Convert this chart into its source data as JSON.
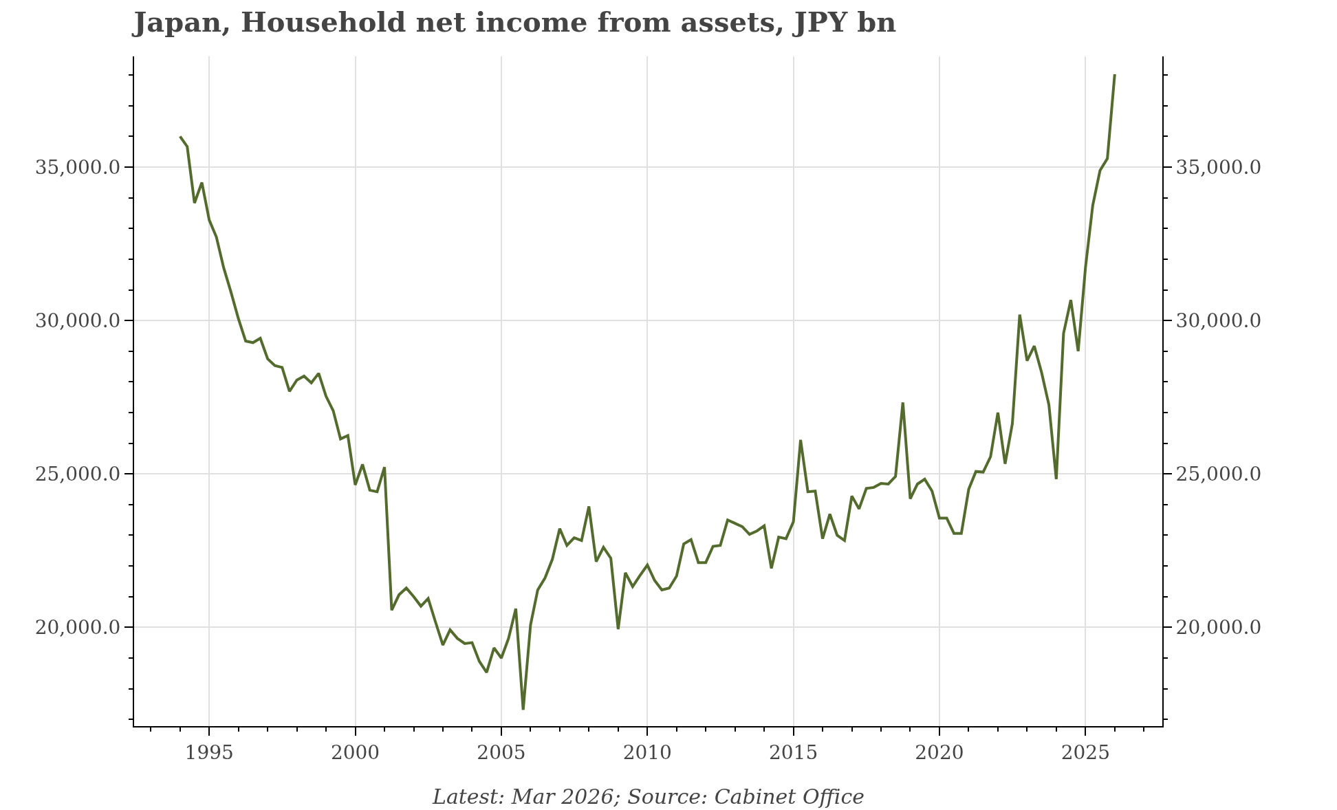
{
  "chart_data": {
    "type": "line",
    "title": "Japan, Household net income from assets, JPY bn",
    "annotations": [
      "Latest: Mar 2026; Source: Cabinet Office"
    ],
    "x": [
      "1994-01",
      "1994-04",
      "1994-07",
      "1994-10",
      "1995-01",
      "1995-04",
      "1995-07",
      "1995-10",
      "1996-01",
      "1996-04",
      "1996-07",
      "1996-10",
      "1997-01",
      "1997-04",
      "1997-07",
      "1997-10",
      "1998-01",
      "1998-04",
      "1998-07",
      "1998-10",
      "1999-01",
      "1999-04",
      "1999-07",
      "1999-10",
      "2000-01",
      "2000-04",
      "2000-07",
      "2000-10",
      "2001-01",
      "2001-04",
      "2001-07",
      "2001-10",
      "2002-01",
      "2002-04",
      "2002-07",
      "2002-10",
      "2003-01",
      "2003-04",
      "2003-07",
      "2003-10",
      "2004-01",
      "2004-04",
      "2004-07",
      "2004-10",
      "2005-01",
      "2005-04",
      "2005-07",
      "2005-10",
      "2006-01",
      "2006-04",
      "2006-07",
      "2006-10",
      "2007-01",
      "2007-04",
      "2007-07",
      "2007-10",
      "2008-01",
      "2008-04",
      "2008-07",
      "2008-10",
      "2009-01",
      "2009-04",
      "2009-07",
      "2009-10",
      "2010-01",
      "2010-04",
      "2010-07",
      "2010-10",
      "2011-01",
      "2011-04",
      "2011-07",
      "2011-10",
      "2012-01",
      "2012-04",
      "2012-07",
      "2012-10",
      "2013-01",
      "2013-04",
      "2013-07",
      "2013-10",
      "2014-01",
      "2014-04",
      "2014-07",
      "2014-10",
      "2015-01",
      "2015-04",
      "2015-07",
      "2015-10",
      "2016-01",
      "2016-04",
      "2016-07",
      "2016-10",
      "2017-01",
      "2017-04",
      "2017-07",
      "2017-10",
      "2018-01",
      "2018-04",
      "2018-07",
      "2018-10",
      "2019-01",
      "2019-04",
      "2019-07",
      "2019-10",
      "2020-01",
      "2020-04",
      "2020-07",
      "2020-10",
      "2021-01",
      "2021-04",
      "2021-07",
      "2021-10",
      "2022-01",
      "2022-04",
      "2022-07",
      "2022-10",
      "2023-01",
      "2023-04",
      "2023-07",
      "2023-10",
      "2024-01",
      "2024-04",
      "2024-07",
      "2024-10",
      "2025-01",
      "2025-04",
      "2025-07",
      "2025-10",
      "2026-01"
    ],
    "series": [
      {
        "color": "#546b2e",
        "values": [
          36000,
          35670,
          33830,
          34500,
          33280,
          32720,
          31720,
          30920,
          30060,
          29330,
          29280,
          29420,
          28750,
          28530,
          28470,
          27690,
          28060,
          28190,
          27970,
          28280,
          27530,
          27060,
          26140,
          26250,
          24640,
          25310,
          24470,
          24420,
          25220,
          20560,
          21060,
          21280,
          21000,
          20690,
          20940,
          20170,
          19420,
          19920,
          19640,
          19470,
          19500,
          18890,
          18530,
          19330,
          19000,
          19640,
          20610,
          17310,
          20080,
          21220,
          21610,
          22220,
          23220,
          22670,
          22920,
          22830,
          23940,
          22140,
          22610,
          22250,
          19940,
          21780,
          21330,
          21690,
          22030,
          21530,
          21220,
          21280,
          21670,
          22720,
          22860,
          22110,
          22110,
          22640,
          22670,
          23500,
          23390,
          23280,
          23030,
          23140,
          23310,
          21920,
          22940,
          22890,
          23440,
          26110,
          24420,
          24440,
          22890,
          23690,
          23000,
          22830,
          24280,
          23860,
          24530,
          24560,
          24690,
          24670,
          24920,
          27330,
          24190,
          24670,
          24830,
          24440,
          23560,
          23560,
          23060,
          23060,
          24500,
          25080,
          25060,
          25560,
          27000,
          25330,
          26640,
          30190,
          28690,
          29170,
          28310,
          27250,
          24830,
          29580,
          30670,
          29000,
          31750,
          33750,
          34890,
          35280,
          38030
        ]
      }
    ],
    "xlim": [
      "1992-06-06",
      "2027-08-19"
    ],
    "xticks": [
      {
        "value": "1993",
        "label": null
      },
      {
        "value": "1994",
        "label": null
      },
      {
        "value": "1995",
        "label": "1995"
      },
      {
        "value": "1996",
        "label": null
      },
      {
        "value": "1997",
        "label": null
      },
      {
        "value": "1998",
        "label": null
      },
      {
        "value": "1999",
        "label": null
      },
      {
        "value": "2000",
        "label": "2000"
      },
      {
        "value": "2001",
        "label": null
      },
      {
        "value": "2002",
        "label": null
      },
      {
        "value": "2003",
        "label": null
      },
      {
        "value": "2004",
        "label": null
      },
      {
        "value": "2005",
        "label": "2005"
      },
      {
        "value": "2006",
        "label": null
      },
      {
        "value": "2007",
        "label": null
      },
      {
        "value": "2008",
        "label": null
      },
      {
        "value": "2009",
        "label": null
      },
      {
        "value": "2010",
        "label": "2010"
      },
      {
        "value": "2011",
        "label": null
      },
      {
        "value": "2012",
        "label": null
      },
      {
        "value": "2013",
        "label": null
      },
      {
        "value": "2014",
        "label": null
      },
      {
        "value": "2015",
        "label": "2015"
      },
      {
        "value": "2016",
        "label": null
      },
      {
        "value": "2017",
        "label": null
      },
      {
        "value": "2018",
        "label": null
      },
      {
        "value": "2019",
        "label": null
      },
      {
        "value": "2020",
        "label": "2020"
      },
      {
        "value": "2021",
        "label": null
      },
      {
        "value": "2022",
        "label": null
      },
      {
        "value": "2023",
        "label": null
      },
      {
        "value": "2024",
        "label": null
      },
      {
        "value": "2025",
        "label": "2025"
      },
      {
        "value": "2026",
        "label": null
      },
      {
        "value": "2027",
        "label": null
      }
    ],
    "ylim": [
      16780,
      38610
    ],
    "yticks": [
      {
        "value": 17000,
        "label": null
      },
      {
        "value": 18000,
        "label": null
      },
      {
        "value": 19000,
        "label": null
      },
      {
        "value": 20000,
        "label": "20,000.0"
      },
      {
        "value": 21000,
        "label": null
      },
      {
        "value": 22000,
        "label": null
      },
      {
        "value": 23000,
        "label": null
      },
      {
        "value": 24000,
        "label": null
      },
      {
        "value": 25000,
        "label": "25,000.0"
      },
      {
        "value": 26000,
        "label": null
      },
      {
        "value": 27000,
        "label": null
      },
      {
        "value": 28000,
        "label": null
      },
      {
        "value": 29000,
        "label": null
      },
      {
        "value": 30000,
        "label": "30,000.0"
      },
      {
        "value": 31000,
        "label": null
      },
      {
        "value": 32000,
        "label": null
      },
      {
        "value": 33000,
        "label": null
      },
      {
        "value": 34000,
        "label": null
      },
      {
        "value": 35000,
        "label": "35,000.0"
      },
      {
        "value": 36000,
        "label": null
      },
      {
        "value": 37000,
        "label": null
      },
      {
        "value": 38000,
        "label": null
      }
    ],
    "y2lim": [
      16780,
      38610
    ],
    "y2ticks": [
      {
        "value": 17000,
        "label": null
      },
      {
        "value": 18000,
        "label": null
      },
      {
        "value": 19000,
        "label": null
      },
      {
        "value": 20000,
        "label": "20,000.0"
      },
      {
        "value": 21000,
        "label": null
      },
      {
        "value": 22000,
        "label": null
      },
      {
        "value": 23000,
        "label": null
      },
      {
        "value": 24000,
        "label": null
      },
      {
        "value": 25000,
        "label": "25,000.0"
      },
      {
        "value": 26000,
        "label": null
      },
      {
        "value": 27000,
        "label": null
      },
      {
        "value": 28000,
        "label": null
      },
      {
        "value": 29000,
        "label": null
      },
      {
        "value": 30000,
        "label": "30,000.0"
      },
      {
        "value": 31000,
        "label": null
      },
      {
        "value": 32000,
        "label": null
      },
      {
        "value": 33000,
        "label": null
      },
      {
        "value": 34000,
        "label": null
      },
      {
        "value": 35000,
        "label": "35,000.0"
      },
      {
        "value": 36000,
        "label": null
      },
      {
        "value": 37000,
        "label": null
      },
      {
        "value": 38000,
        "label": null
      }
    ],
    "grid": true,
    "marker": "none",
    "line_style": "solid"
  }
}
